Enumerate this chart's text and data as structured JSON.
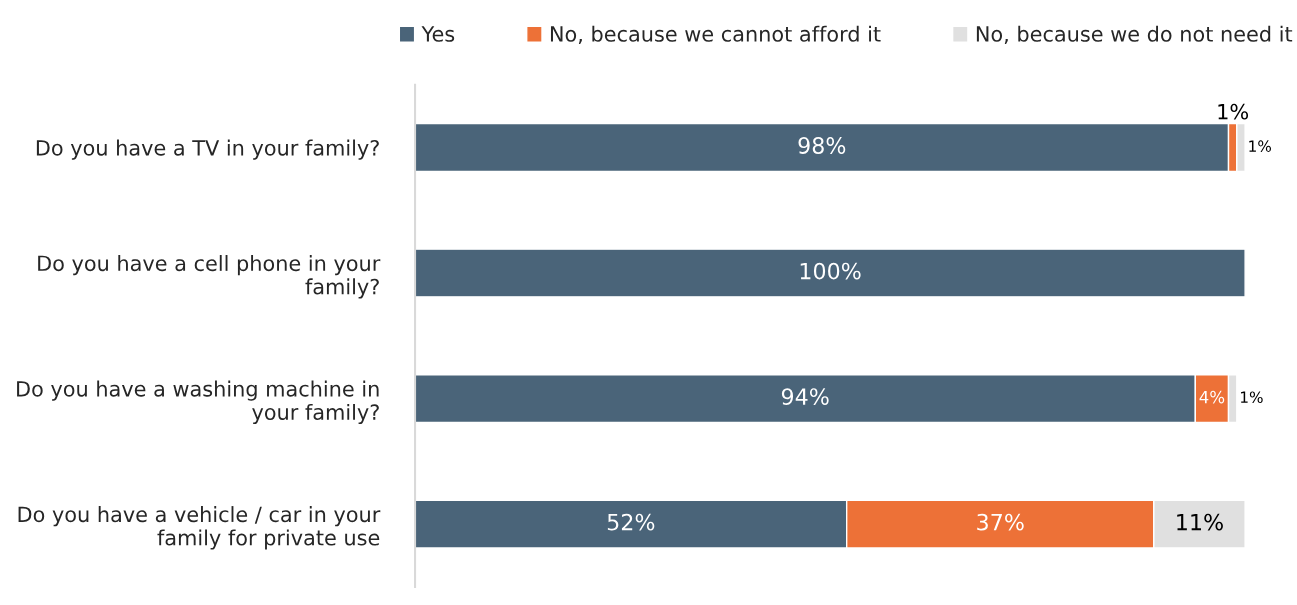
{
  "chart_data": {
    "type": "bar",
    "orientation": "horizontal",
    "stacked": true,
    "legend": "top",
    "grid": false,
    "categories": [
      "Do you have a TV in your family?",
      "Do you have a cell phone in your family?",
      "Do you have a washing machine in your family?",
      "Do you have a vehicle / car in your family for private use"
    ],
    "series": [
      {
        "name": "Yes",
        "color": "#4a6479",
        "values": [
          98,
          100,
          94,
          52
        ],
        "value_labels": [
          "98%",
          "100%",
          "94%",
          "52%"
        ]
      },
      {
        "name": "No, because we cannot afford it",
        "color": "#ed7137",
        "values": [
          1,
          0,
          4,
          37
        ],
        "value_labels": [
          "1%",
          null,
          "4%",
          "37%"
        ]
      },
      {
        "name": "No, because we do not need it",
        "color": "#e0e0e0",
        "values": [
          1,
          0,
          1,
          11
        ],
        "value_labels": [
          "1%",
          null,
          "1%",
          "11%"
        ]
      }
    ]
  }
}
